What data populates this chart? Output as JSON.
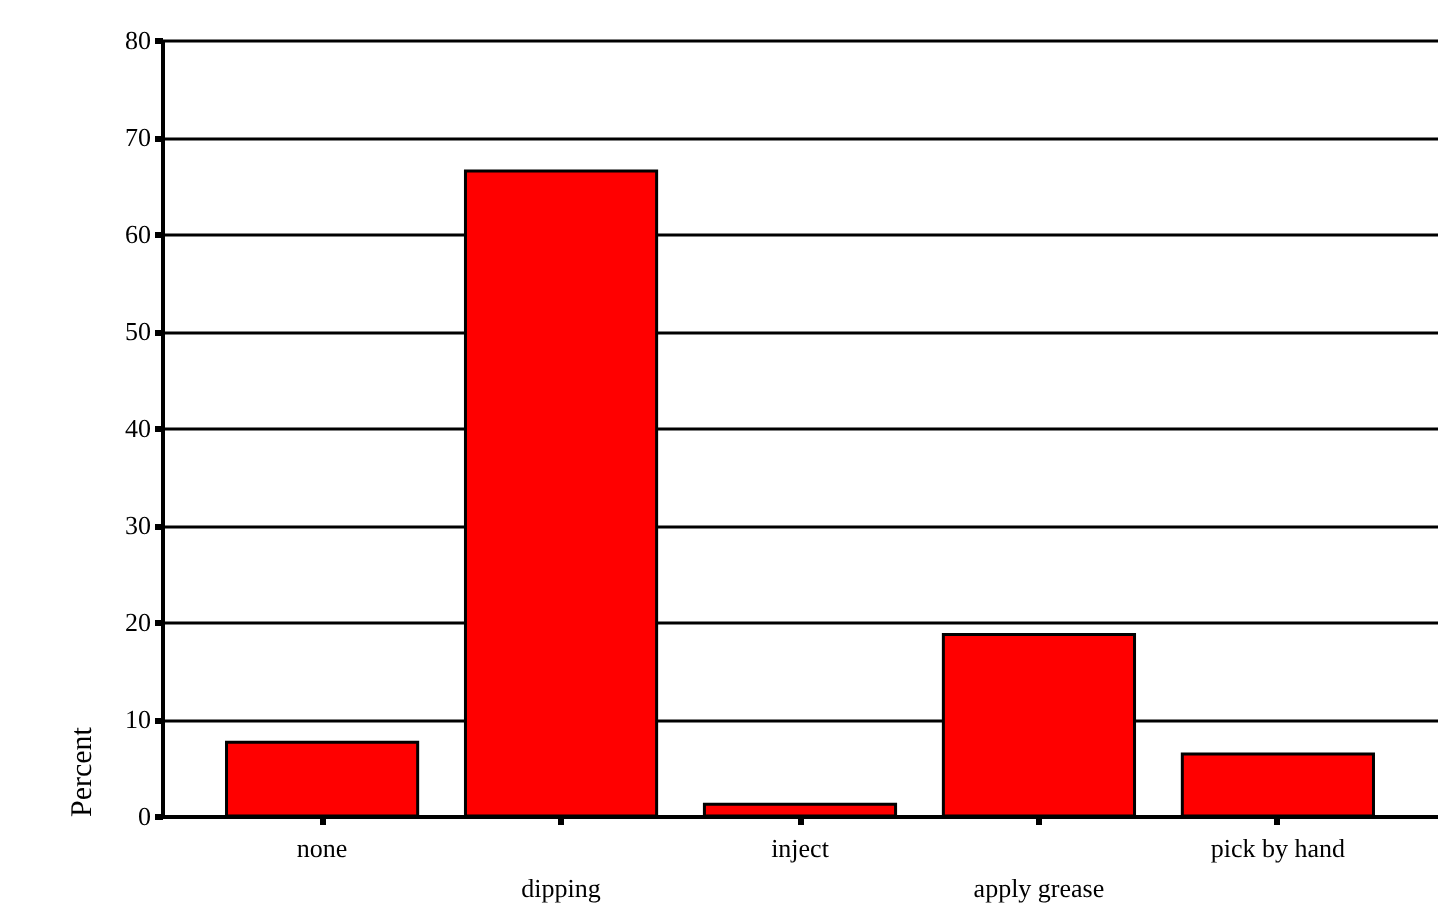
{
  "chart_data": {
    "type": "bar",
    "ylabel": "Percent",
    "categories": [
      "none",
      "dipping",
      "inject",
      "apply grease",
      "pick by hand"
    ],
    "values": [
      7.6,
      66.5,
      1.2,
      18.7,
      6.4
    ],
    "color": "#ff0000",
    "ylim": [
      0,
      80
    ],
    "yticks": [
      0,
      10,
      20,
      30,
      40,
      50,
      60,
      70,
      80
    ],
    "grid": "y"
  }
}
